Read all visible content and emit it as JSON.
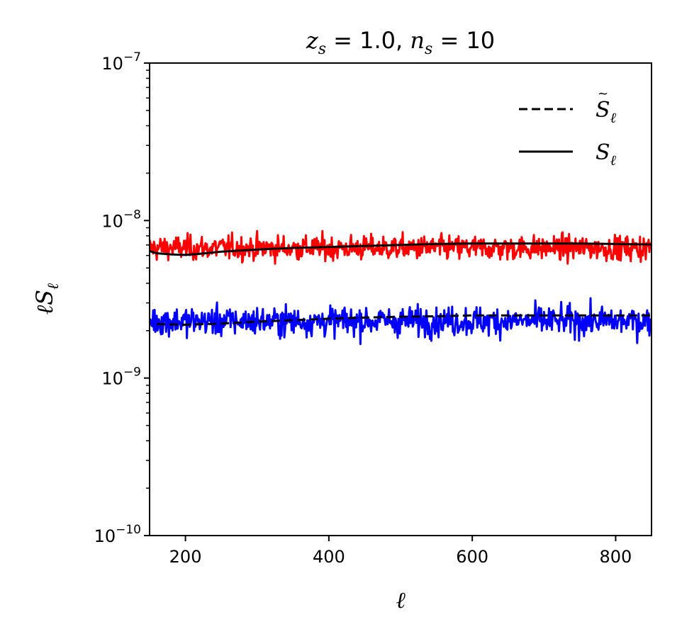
{
  "chart_data": {
    "type": "line",
    "title": "z_s = 1.0, n_s = 10",
    "title_parts": {
      "z": "z",
      "z_sub": "s",
      "eq1": " = 1.0, ",
      "n": "n",
      "n_sub": "s",
      "eq2": " = 10"
    },
    "xlabel": "ℓ",
    "ylabel": "ℓS_ℓ",
    "ylabel_parts": {
      "ell": "ℓ",
      "S": "S",
      "sub": "ℓ"
    },
    "xscale": "linear",
    "yscale": "log",
    "xlim": [
      150,
      850
    ],
    "ylim": [
      1e-10,
      1e-07
    ],
    "x_ticks": [
      200,
      400,
      600,
      800
    ],
    "x_tick_labels": [
      "200",
      "400",
      "600",
      "800"
    ],
    "y_ticks": [
      {
        "value": 1e-10,
        "base": "10",
        "exp": "−10"
      },
      {
        "value": 1e-09,
        "base": "10",
        "exp": "−9"
      },
      {
        "value": 1e-08,
        "base": "10",
        "exp": "−8"
      },
      {
        "value": 1e-07,
        "base": "10",
        "exp": "−7"
      }
    ],
    "grid": false,
    "legend": {
      "placement": "top-right",
      "entries": [
        {
          "label": "S̃_ℓ",
          "main": "S",
          "sub": "ℓ",
          "tilde": "~",
          "style": "dashed",
          "color": "#000000"
        },
        {
          "label": "S_ℓ",
          "main": "S",
          "sub": "ℓ",
          "tilde": "",
          "style": "solid",
          "color": "#000000"
        }
      ]
    },
    "series": [
      {
        "name": "S_ℓ",
        "style": "solid",
        "color": "#000000",
        "x": [
          150,
          160,
          180,
          200,
          220,
          250,
          300,
          350,
          400,
          450,
          500,
          550,
          600,
          650,
          700,
          750,
          800,
          850
        ],
        "y": [
          6.4e-09,
          6.2e-09,
          6.1e-09,
          6.05e-09,
          6.15e-09,
          6.35e-09,
          6.55e-09,
          6.7e-09,
          6.8e-09,
          6.9e-09,
          7e-09,
          7.1e-09,
          7.15e-09,
          7.15e-09,
          7.15e-09,
          7.15e-09,
          7.1e-09,
          7.05e-09
        ]
      },
      {
        "name": "S̃_ℓ",
        "style": "dashed",
        "color": "#000000",
        "x": [
          160,
          200,
          250,
          300,
          350,
          400,
          450,
          500,
          550,
          600,
          650,
          700,
          750,
          800,
          850
        ],
        "y": [
          2.2e-09,
          2.18e-09,
          2.22e-09,
          2.28e-09,
          2.33e-09,
          2.38e-09,
          2.42e-09,
          2.45e-09,
          2.47e-09,
          2.5e-09,
          2.5e-09,
          2.5e-09,
          2.5e-09,
          2.5e-09,
          2.5e-09
        ]
      },
      {
        "color": "#ff0000",
        "style": "noisy",
        "x_range": [
          150,
          850
        ],
        "center": 6.7e-09,
        "min": 3.8e-09,
        "max": 9.2e-09
      },
      {
        "color": "#0000ff",
        "style": "noisy",
        "x_range": [
          150,
          850
        ],
        "center": 2.3e-09,
        "min": 9.3e-10,
        "max": 3.4e-09
      }
    ]
  }
}
